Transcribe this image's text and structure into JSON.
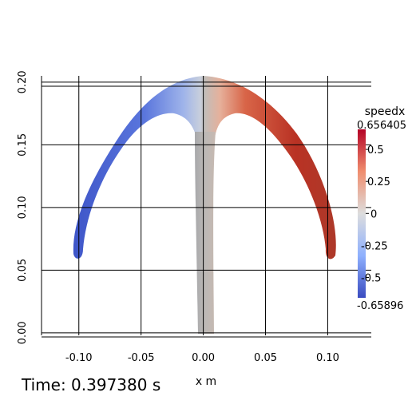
{
  "plot": {
    "field_name": "speedx",
    "colorbar": {
      "max_label": "0.656405",
      "min_label": "-0.65896",
      "ticks": [
        "0.5",
        "0.25",
        "0",
        "-0.25",
        "-0.5"
      ],
      "range": [
        -0.65896,
        0.656405
      ],
      "colormap": [
        "#3b4cc0",
        "#dddddd",
        "#b40426"
      ]
    },
    "x_axis": {
      "title": "x m",
      "tick_labels": [
        "-0.10",
        "-0.05",
        "0.00",
        "0.05",
        "0.10"
      ],
      "range": [
        -0.13,
        0.135
      ]
    },
    "y_axis": {
      "tick_labels": [
        "0.00",
        "0.05",
        "0.10",
        "0.15",
        "0.20"
      ],
      "range": [
        -0.002,
        0.205
      ]
    },
    "grid": true
  },
  "time_label": "Time: 0.397380 s"
}
